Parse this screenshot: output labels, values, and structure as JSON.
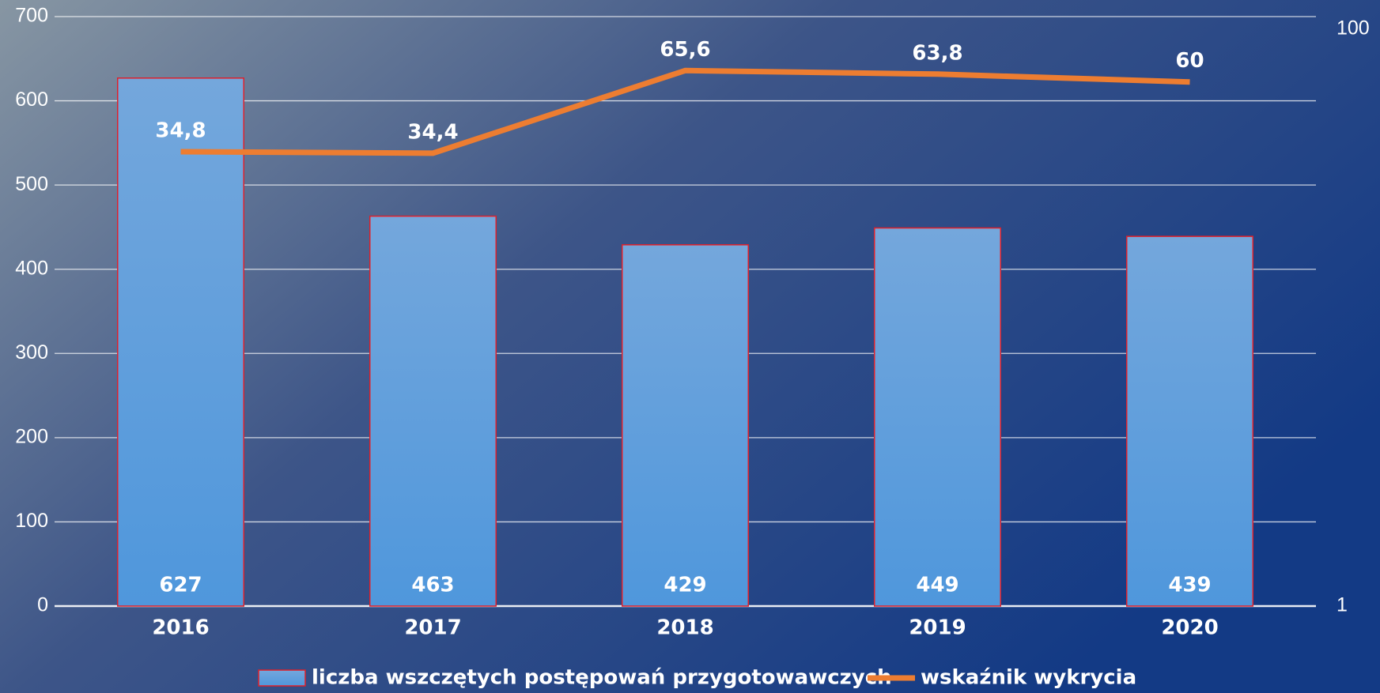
{
  "chart_data": {
    "type": "bar",
    "categories": [
      "2016",
      "2017",
      "2018",
      "2019",
      "2020"
    ],
    "series": [
      {
        "name": "liczba wszczętych postępowań przygotowawczych",
        "type": "bar",
        "color": "#5b9bd5",
        "edge": "#e0202a",
        "values": [
          627,
          463,
          429,
          449,
          439
        ]
      },
      {
        "name": "wskaźnik wykrycia",
        "type": "line",
        "axis": "y2",
        "color": "#ed7d31",
        "values": [
          34.8,
          34.4,
          65.6,
          63.8,
          60
        ],
        "value_labels": [
          "34,8",
          "34,4",
          "65,6",
          "63,8",
          "60"
        ]
      }
    ],
    "ylim": [
      0,
      700
    ],
    "yticks": [
      0,
      100,
      200,
      300,
      400,
      500,
      600,
      700
    ],
    "y2lim": [
      1,
      100
    ],
    "y2ticks": [
      1,
      100
    ],
    "y2log": true,
    "grid": true,
    "legend": "bottom"
  }
}
